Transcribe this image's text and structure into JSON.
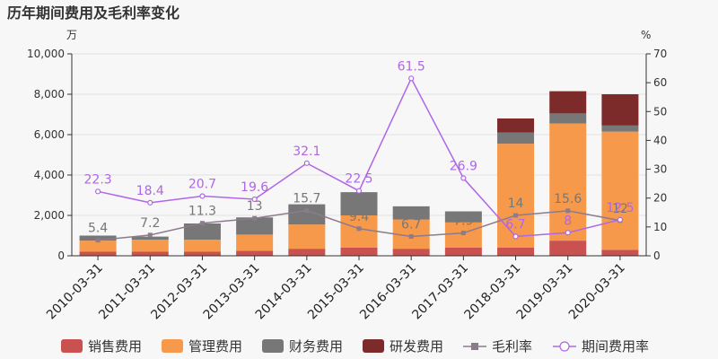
{
  "chart_data": {
    "type": "bar",
    "title": "历年期间费用及毛利率变化",
    "left_unit": "万",
    "right_unit": "%",
    "categories": [
      "2010-03-31",
      "2011-03-31",
      "2012-03-31",
      "2013-03-31",
      "2014-03-31",
      "2015-03-31",
      "2016-03-31",
      "2017-03-31",
      "2018-03-31",
      "2019-03-31",
      "2020-03-31"
    ],
    "left_axis": {
      "min": 0,
      "max": 10000,
      "ticks": [
        "0",
        "2,000",
        "4,000",
        "6,000",
        "8,000",
        "10,000"
      ],
      "tick_values": [
        0,
        2000,
        4000,
        6000,
        8000,
        10000
      ]
    },
    "right_axis": {
      "min": 0,
      "max": 70,
      "ticks": [
        "0",
        "10",
        "20",
        "30",
        "40",
        "50",
        "60",
        "70"
      ],
      "tick_values": [
        0,
        10,
        20,
        30,
        40,
        50,
        60,
        70
      ]
    },
    "bar_series": [
      {
        "name": "销售费用",
        "color": "#c9514f",
        "values": [
          200,
          200,
          200,
          250,
          350,
          400,
          350,
          400,
          400,
          750,
          300
        ]
      },
      {
        "name": "管理费用",
        "color": "#f7994a",
        "values": [
          550,
          600,
          600,
          800,
          1200,
          1600,
          1450,
          1250,
          5150,
          5800,
          5850
        ]
      },
      {
        "name": "财务费用",
        "color": "#777777",
        "values": [
          250,
          150,
          800,
          850,
          1000,
          1150,
          650,
          550,
          550,
          500,
          300
        ]
      },
      {
        "name": "研发费用",
        "color": "#7c2a2a",
        "values": [
          0,
          0,
          0,
          0,
          0,
          0,
          0,
          0,
          700,
          1100,
          1550
        ]
      }
    ],
    "line_series": [
      {
        "name": "毛利率",
        "color": "#8c7b8c",
        "values": [
          5.4,
          7.2,
          11.3,
          13,
          15.7,
          9.4,
          6.7,
          7.9,
          14,
          15.6,
          12.2
        ],
        "labels": [
          "5.4",
          "7.2",
          "11.3",
          "13",
          "15.7",
          "9.4",
          "6.7",
          "7.9",
          "14",
          "15.6",
          "12"
        ]
      },
      {
        "name": "期间费用率",
        "color": "#b066e6",
        "values": [
          22.3,
          18.4,
          20.7,
          19.6,
          32.1,
          22.5,
          61.5,
          26.9,
          6.7,
          8,
          12.5
        ],
        "labels": [
          "22.3",
          "18.4",
          "20.7",
          "19.6",
          "32.1",
          "22.5",
          "61.5",
          "26.9",
          "6.7",
          "8",
          "12.5"
        ]
      }
    ],
    "legend_position": "bottom"
  }
}
